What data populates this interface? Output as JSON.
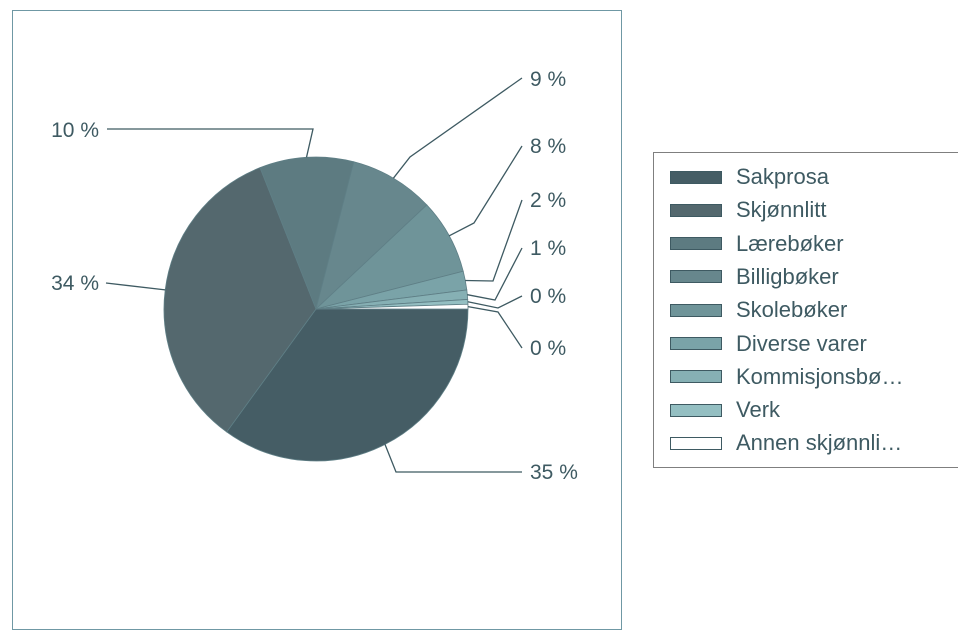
{
  "chart_data": {
    "type": "pie",
    "slices": [
      {
        "label": "Sakprosa",
        "value": 35,
        "display": "35 %",
        "color": "#455d65"
      },
      {
        "label": "Skjønnlitt",
        "value": 34,
        "display": "34 %",
        "color": "#54686e"
      },
      {
        "label": "Lærebøker",
        "value": 10,
        "display": "10 %",
        "color": "#5d7b81"
      },
      {
        "label": "Billigbøker",
        "value": 9,
        "display": "9 %",
        "color": "#67878d"
      },
      {
        "label": "Skolebøker",
        "value": 8,
        "display": "8 %",
        "color": "#6f9499"
      },
      {
        "label": "Diverse varer",
        "value": 2,
        "display": "2 %",
        "color": "#7aa3a8"
      },
      {
        "label": "Kommisjonsbø…",
        "value": 1,
        "display": "1 %",
        "color": "#86b0b4"
      },
      {
        "label": "Verk",
        "value": 0.5,
        "display": "0 %",
        "color": "#94bfc2"
      },
      {
        "label": "Annen skjønnli…",
        "value": 0.5,
        "display": "0 %",
        "color": "#ffffff"
      }
    ],
    "legend_position": "right"
  }
}
